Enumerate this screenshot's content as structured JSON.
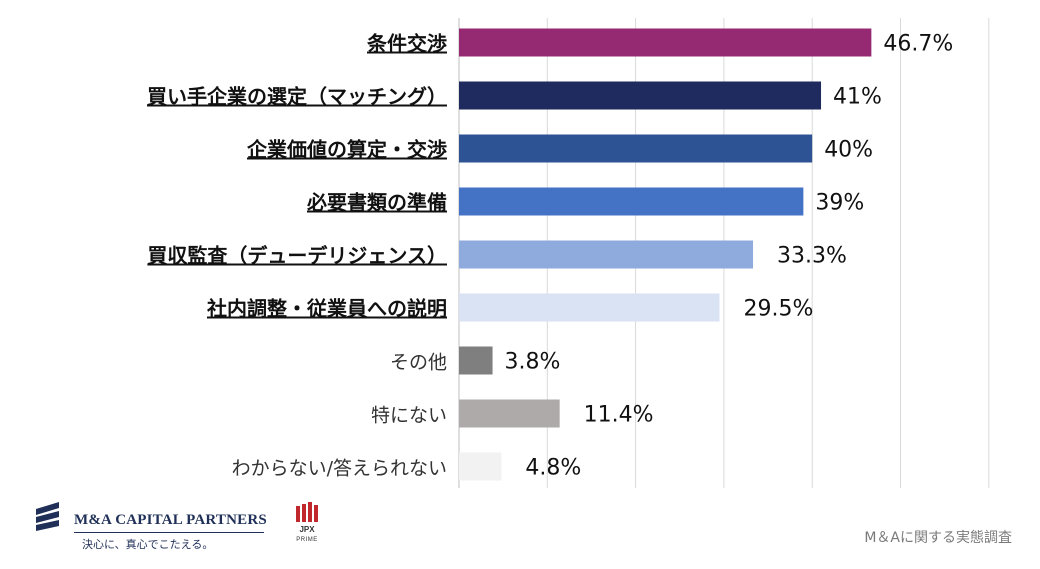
{
  "chart_data": {
    "type": "bar",
    "orientation": "horizontal",
    "categories": [
      "条件交渉",
      "買い手企業の選定（マッチング）",
      "企業価値の算定・交渉",
      "必要書類の準備",
      "買収監査（デューデリジェンス）",
      "社内調整・従業員への説明",
      "その他",
      "特にない",
      "わからない/答えられない"
    ],
    "values": [
      46.7,
      41,
      40,
      39,
      33.3,
      29.5,
      3.8,
      11.4,
      4.8
    ],
    "value_labels": [
      "46.7%",
      "41%",
      "40%",
      "39%",
      "33.3%",
      "29.5%",
      "3.8%",
      "11.4%",
      "4.8%"
    ],
    "underlined": [
      true,
      true,
      true,
      true,
      true,
      true,
      false,
      false,
      false
    ],
    "bold": [
      true,
      true,
      true,
      true,
      true,
      true,
      false,
      false,
      false
    ],
    "colors": [
      "#962a72",
      "#1f2b5e",
      "#2e5394",
      "#4472c4",
      "#8faadc",
      "#dae3f3",
      "#7f7f7f",
      "#aeaaaa",
      "#f2f2f2"
    ],
    "xlim": [
      0,
      60
    ],
    "grid": true,
    "legend": "none"
  },
  "footer": {
    "company": "M&A CAPITAL PARTNERS",
    "tagline": "決心に、真心でこたえる。",
    "exchange": "JPX",
    "exchange_segment": "PRIME",
    "survey_note": "M＆Aに関する実態調査"
  }
}
